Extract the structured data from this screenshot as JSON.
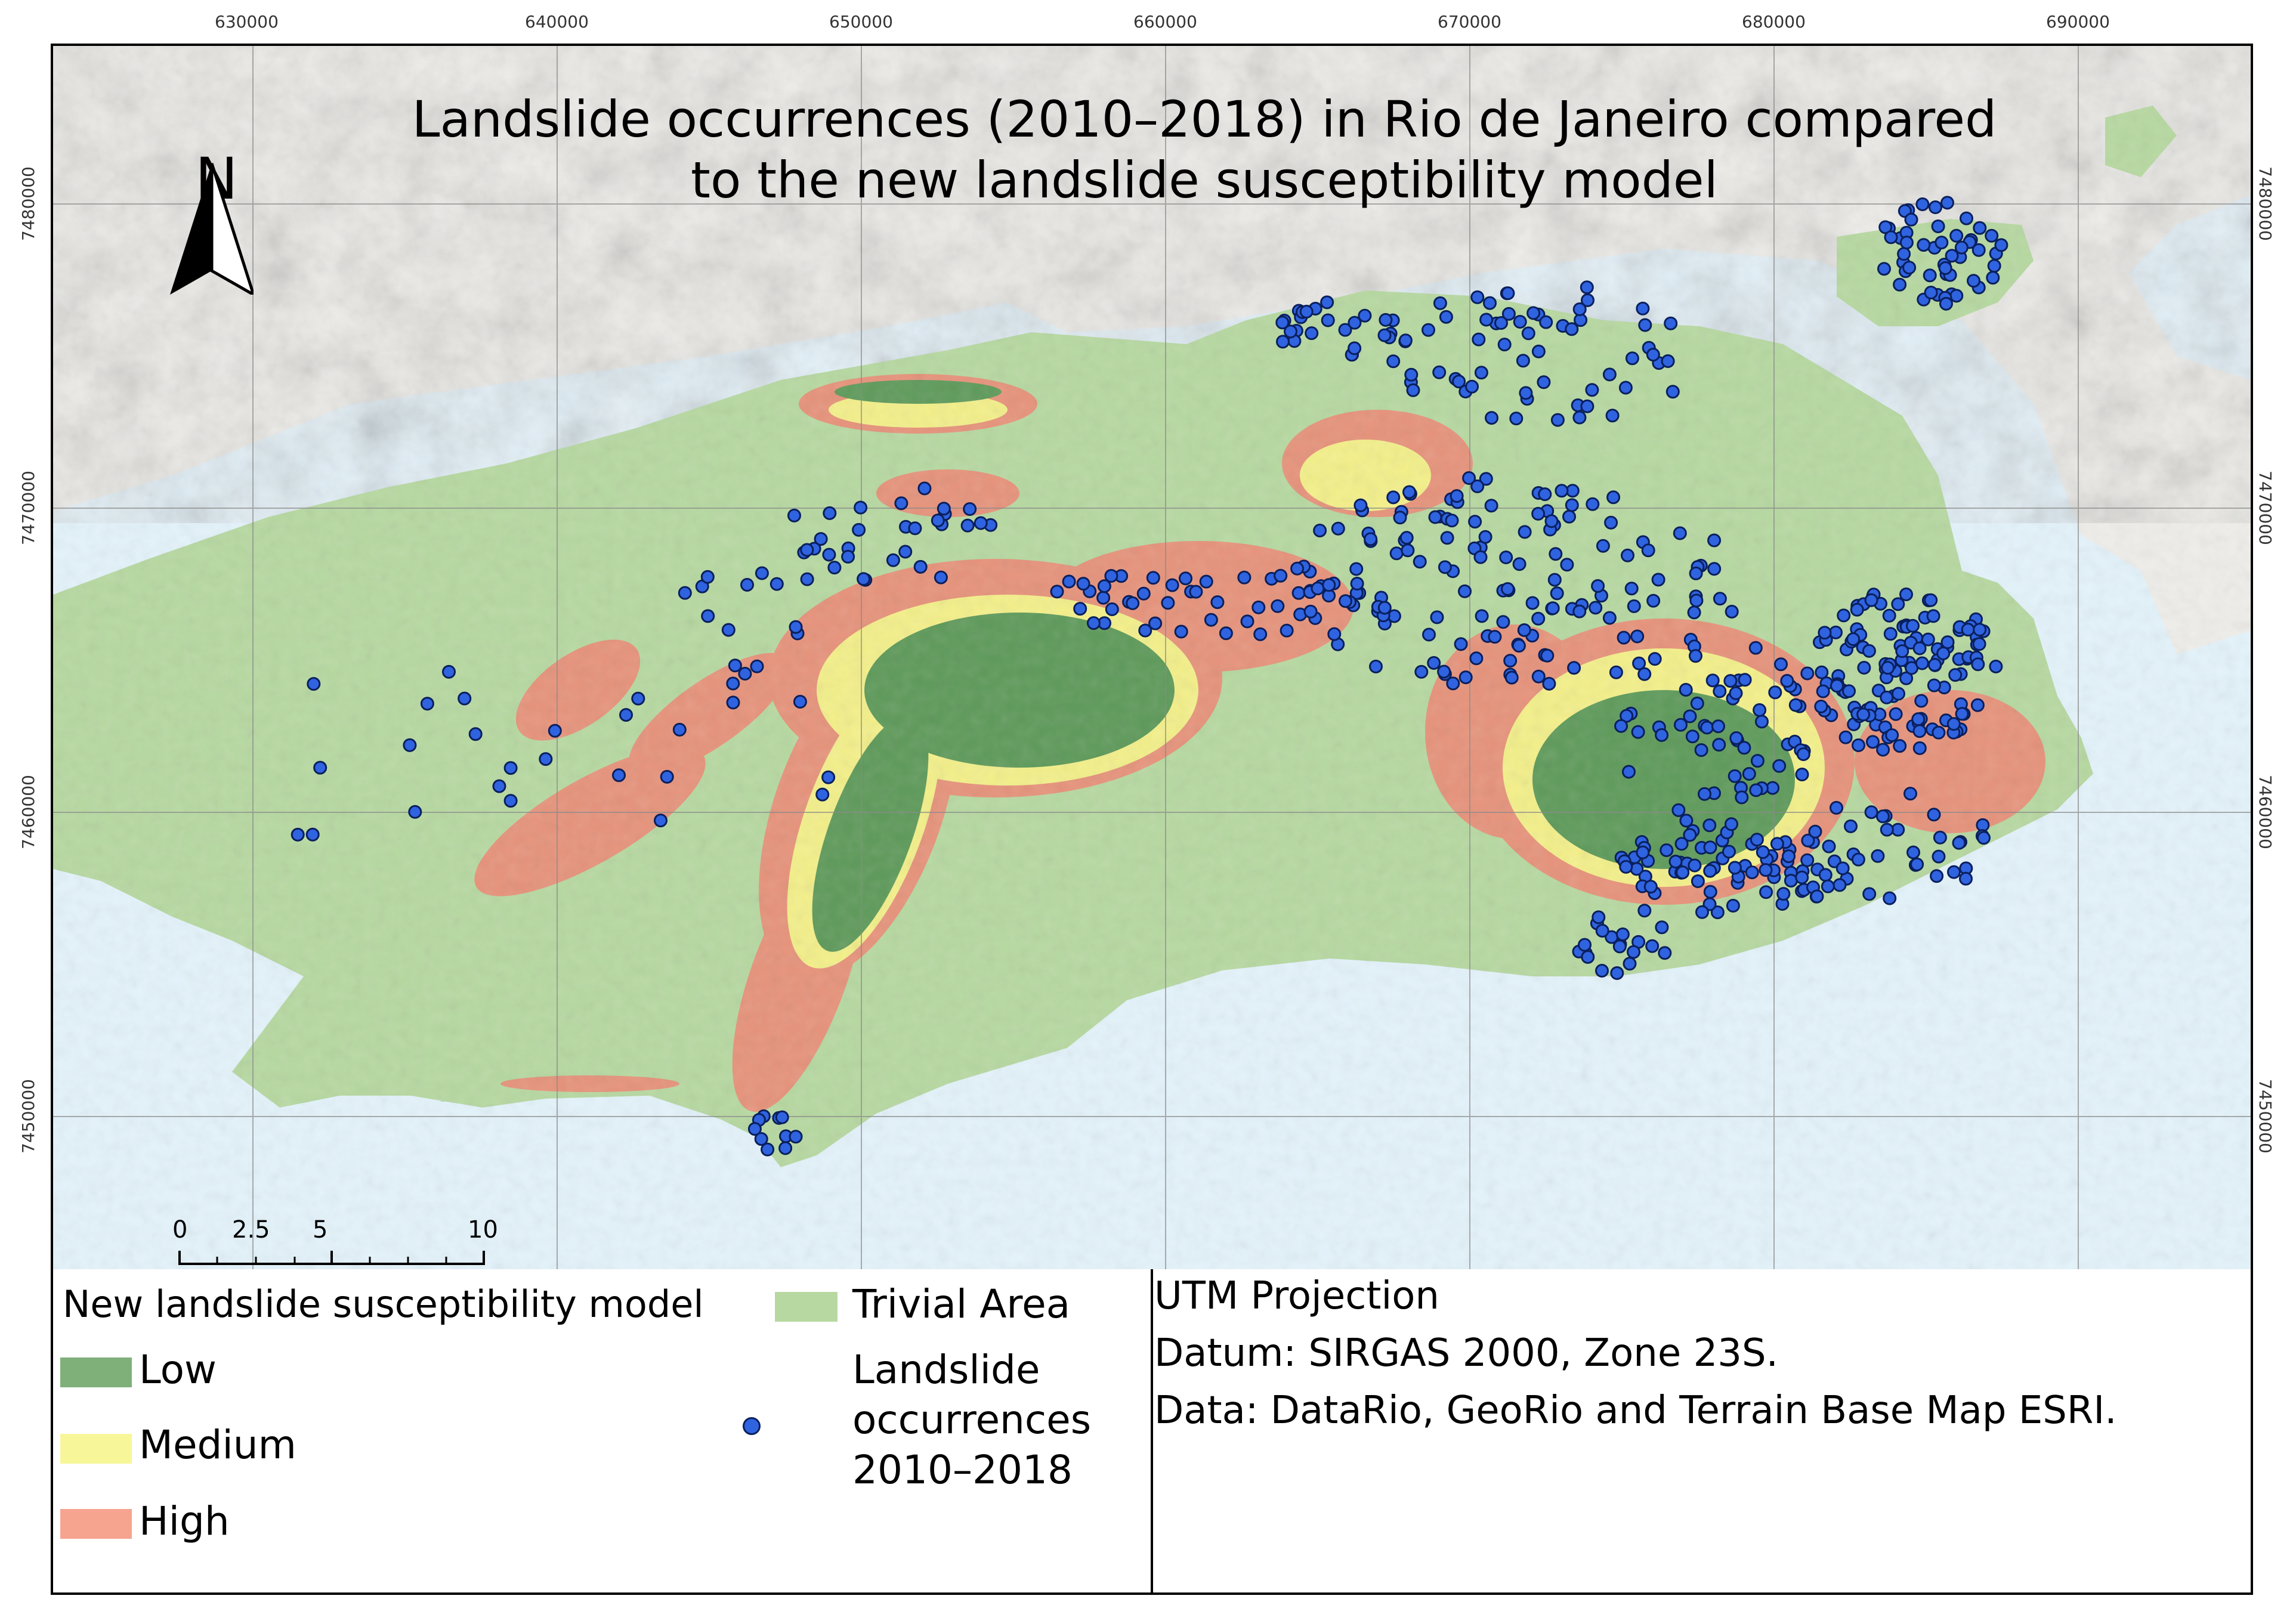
{
  "title": {
    "line1": "Landslide occurrences (2010–2018) in Rio de Janeiro compared",
    "line2": "to the new landslide susceptibility model"
  },
  "north_arrow": {
    "letter": "N",
    "icon": "north-arrow-icon"
  },
  "coordinates": {
    "easting": [
      "630000",
      "640000",
      "650000",
      "660000",
      "670000",
      "680000",
      "690000"
    ],
    "northing": [
      "7480000",
      "7470000",
      "7460000",
      "7450000"
    ]
  },
  "scale_bar": {
    "ticks": [
      "0",
      "2.5",
      "5",
      "10"
    ]
  },
  "legend": {
    "title": "New landslide susceptibility model",
    "classes": [
      {
        "label": "Low",
        "color": "#7fb07a"
      },
      {
        "label": "Medium",
        "color": "#f7f79a"
      },
      {
        "label": "High",
        "color": "#f6a490"
      }
    ],
    "trivial": {
      "label": "Trivial Area",
      "color": "#b7d9a1"
    },
    "occurrences": {
      "line1": "Landslide",
      "line2": "occurrences",
      "line3": "2010–2018",
      "color": "#2f63e0"
    }
  },
  "info": {
    "projection": "UTM Projection",
    "datum": "Datum: SIRGAS 2000, Zone 23S.",
    "data": "Data: DataRio, GeoRio and Terrain Base Map ESRI."
  },
  "colors": {
    "water": "#e4f3fb",
    "land_outside": "#f0f0ee",
    "trivial": "#b7d9a1",
    "low": "#5e9a5a",
    "medium": "#f4f08a",
    "high": "#e9907a",
    "points": "#2f63e0"
  }
}
